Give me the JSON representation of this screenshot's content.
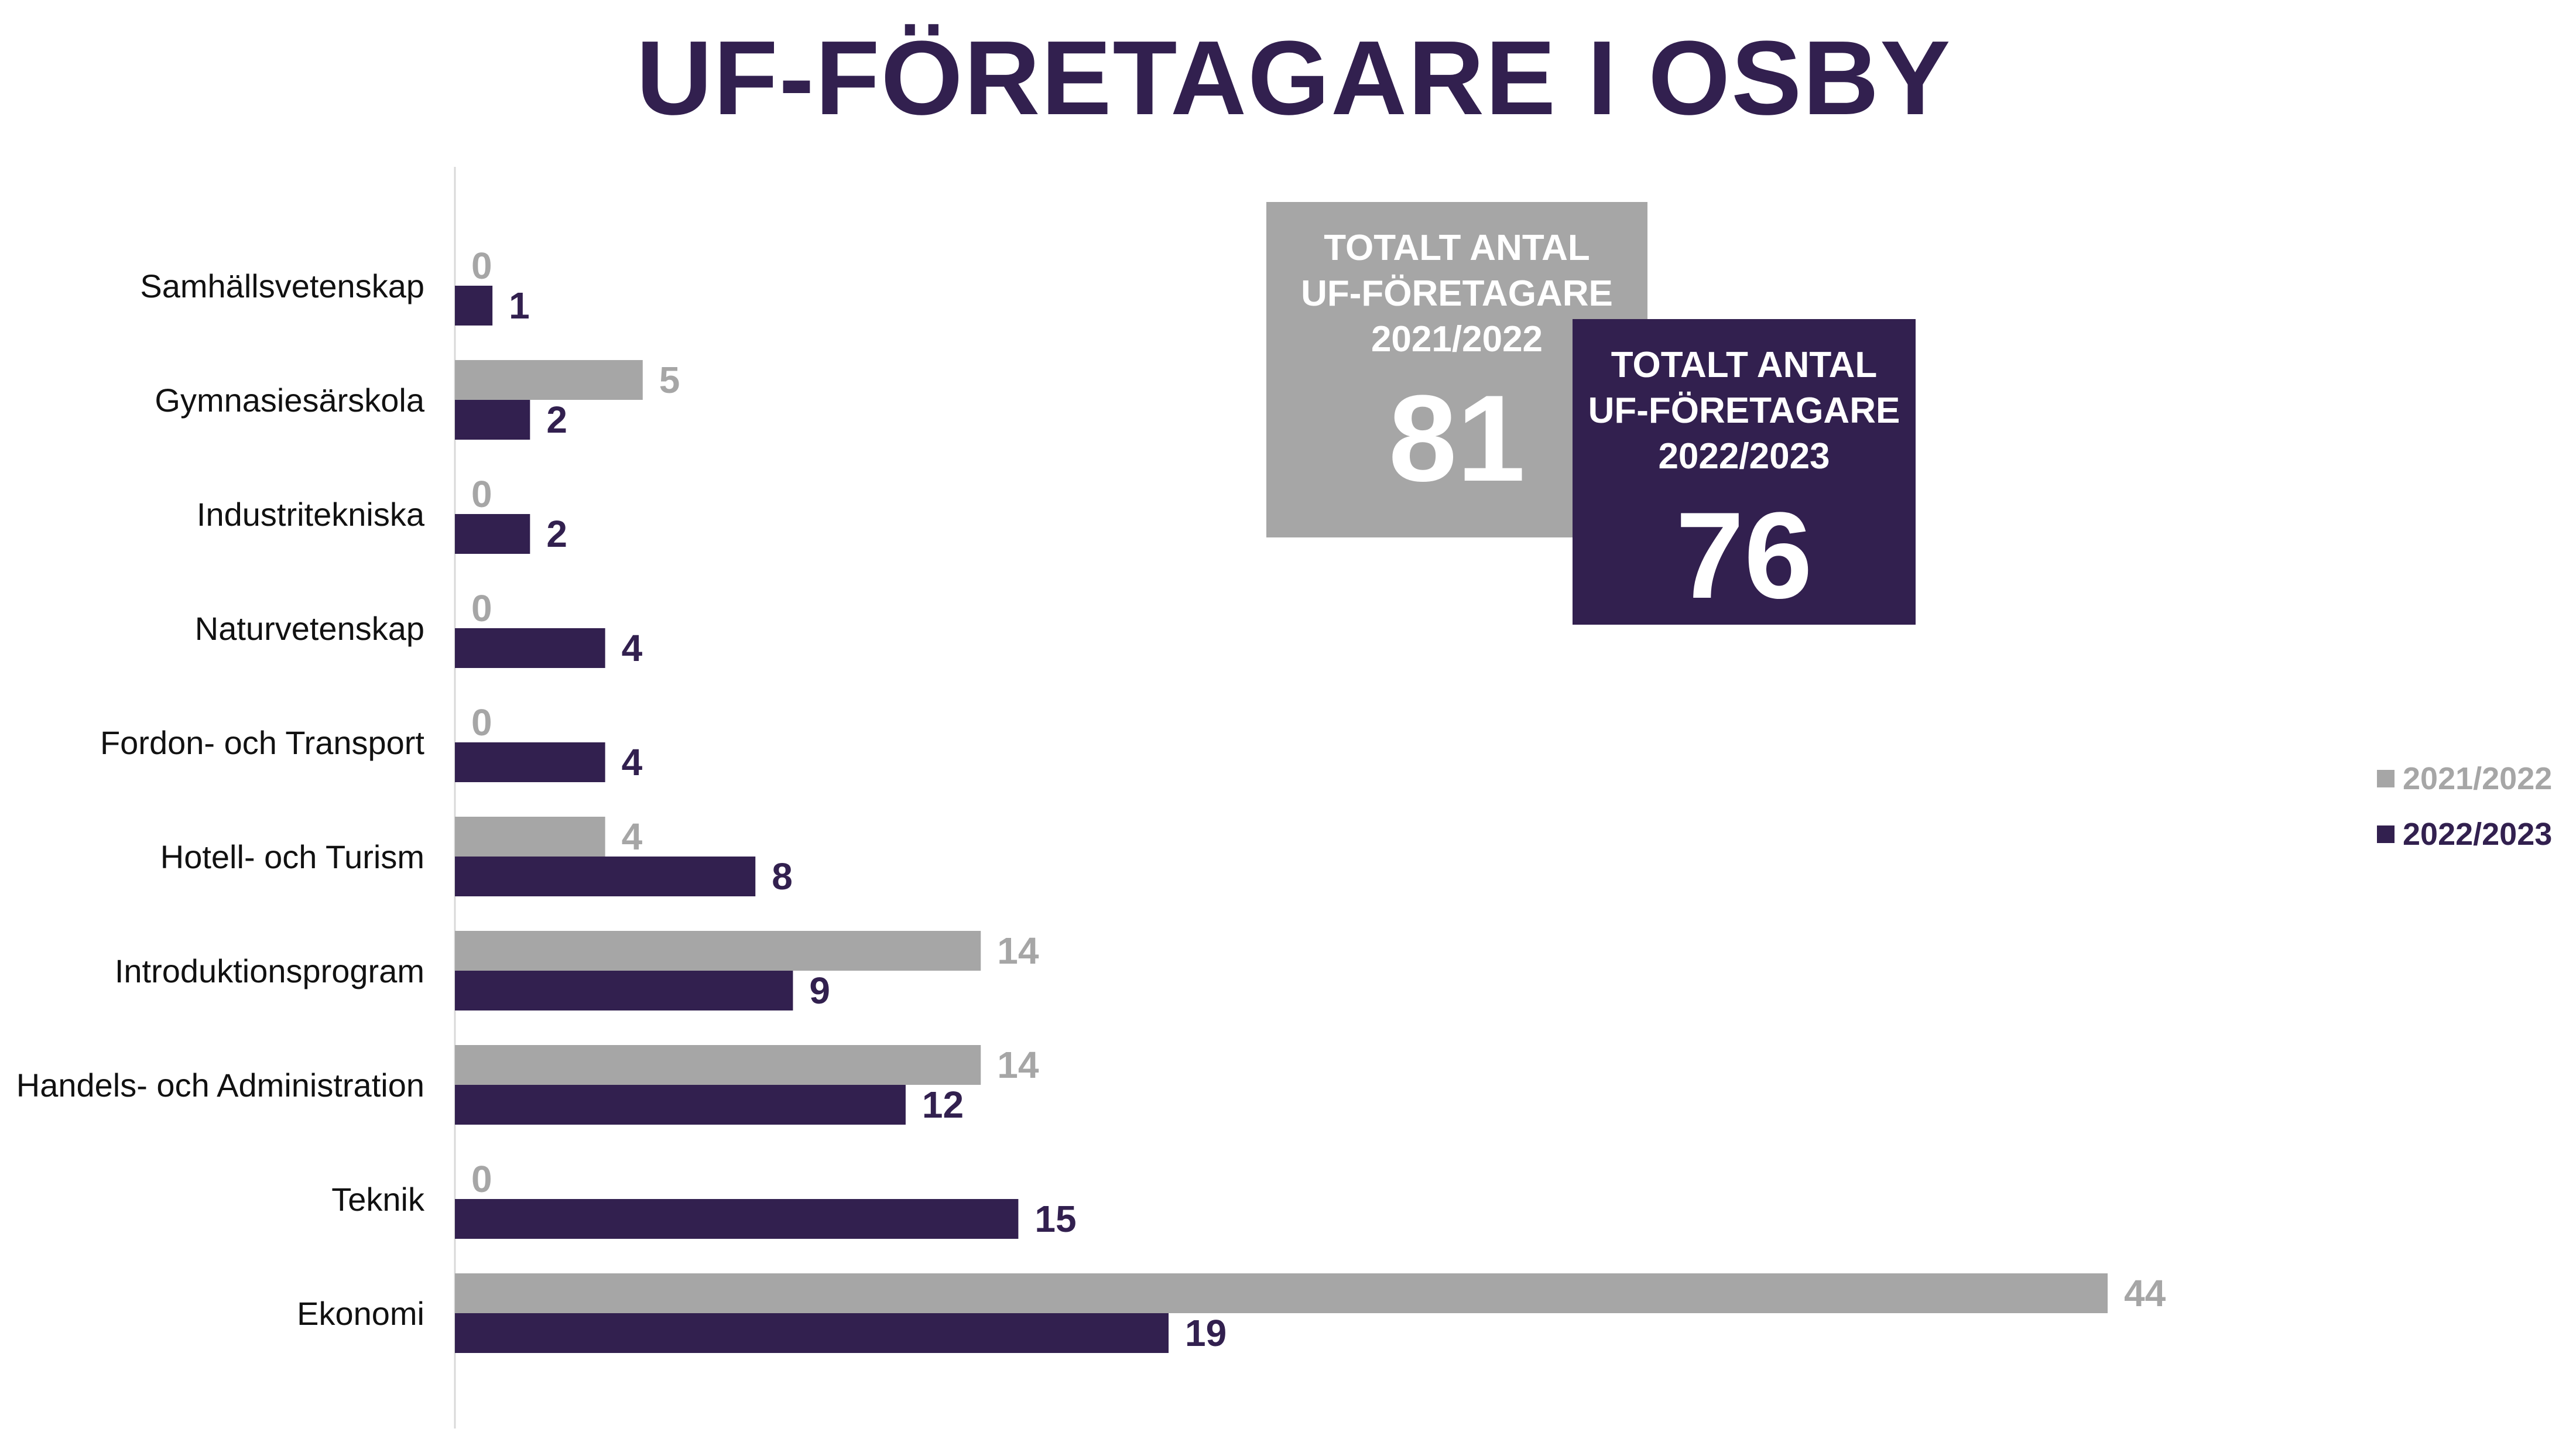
{
  "chart_data": {
    "type": "bar",
    "orientation": "horizontal",
    "title": "UF-FÖRETAGARE I OSBY",
    "categories": [
      "Samhällsvetenskap",
      "Gymnasiesärskola",
      "Industritekniska",
      "Naturvetenskap",
      "Fordon- och Transport",
      "Hotell- och Turism",
      "Introduktionsprogram",
      "Handels- och Administration",
      "Teknik",
      "Ekonomi"
    ],
    "series": [
      {
        "name": "2021/2022",
        "values": [
          0,
          5,
          0,
          0,
          0,
          4,
          14,
          14,
          0,
          44
        ],
        "color": "#A6A6A6"
      },
      {
        "name": "2022/2023",
        "values": [
          1,
          2,
          2,
          4,
          4,
          8,
          9,
          12,
          15,
          19
        ],
        "color": "#32204F"
      }
    ],
    "xlim": [
      0,
      44
    ],
    "legend_position": "right",
    "grid": false
  },
  "totals": [
    {
      "heading_lines": [
        "TOTALT ANTAL",
        "UF-FÖRETAGARE",
        "2021/2022"
      ],
      "value": "81",
      "color": "#A6A6A6"
    },
    {
      "heading_lines": [
        "TOTALT ANTAL",
        "UF-FÖRETAGARE",
        "2022/2023"
      ],
      "value": "76",
      "color": "#32204F"
    }
  ]
}
